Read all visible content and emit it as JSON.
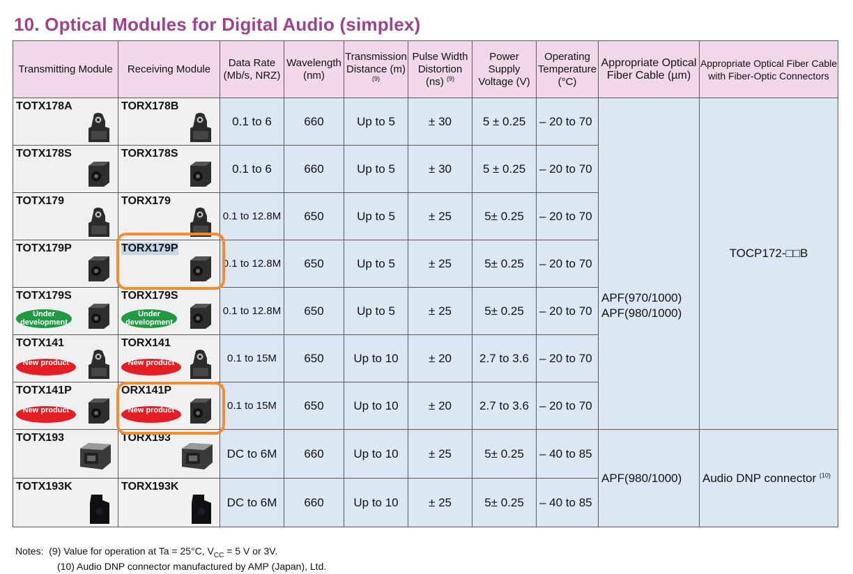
{
  "title": "10.  Optical Modules for Digital Audio (simplex)",
  "headers": {
    "tx": "Transmitting Module",
    "rx": "Receiving Module",
    "rate": "Data Rate (Mb/s, NRZ)",
    "wavelength": "Wavelength (nm)",
    "distance": "Transmission Distance (m)",
    "distance_note": "(9)",
    "pulse": "Pulse Width Distortion (ns)",
    "pulse_note": "(9)",
    "voltage": "Power Supply Voltage (V)",
    "temp": "Operating Temperature (°C)",
    "cable": "Appropriate Optical Fiber Cable (µm)",
    "connector": "Appropriate Optical Fiber Cable with Fiber-Optic Connectors"
  },
  "badges": {
    "under_development": "Under development",
    "new_product": "New product"
  },
  "rows": [
    {
      "tx": "TOTX178A",
      "rx": "TORX178B",
      "rate": "0.1 to 6",
      "wavelength": "660",
      "distance": "Up to 5",
      "pulse": "± 30",
      "voltage": "5 ± 0.25",
      "temp": "– 20 to 70",
      "pic": "tall",
      "badge": ""
    },
    {
      "tx": "TOTX178S",
      "rx": "TORX178S",
      "rate": "0.1 to 6",
      "wavelength": "660",
      "distance": "Up to 5",
      "pulse": "± 30",
      "voltage": "5 ± 0.25",
      "temp": "– 20 to 70",
      "pic": "box",
      "badge": ""
    },
    {
      "tx": "TOTX179",
      "rx": "TORX179",
      "rate": "0.1 to 12.8M",
      "wavelength": "650",
      "distance": "Up to  5",
      "pulse": "± 25",
      "voltage": "5± 0.25",
      "temp": "– 20 to 70",
      "pic": "tall",
      "badge": ""
    },
    {
      "tx": "TOTX179P",
      "rx": "TORX179P",
      "rate": "0.1 to 12.8M",
      "wavelength": "650",
      "distance": "Up to 5",
      "pulse": "± 25",
      "voltage": "5± 0.25",
      "temp": "– 20 to 70",
      "pic": "box",
      "badge": ""
    },
    {
      "tx": "TOTX179S",
      "rx": "TORX179S",
      "rate": "0.1 to 12.8M",
      "wavelength": "650",
      "distance": "Up to 5",
      "pulse": "± 25",
      "voltage": "5± 0.25",
      "temp": "– 20 to 70",
      "pic": "box",
      "badge": "dev"
    },
    {
      "tx": "TOTX141",
      "rx": "TORX141",
      "rate": "0.1 to 15M",
      "wavelength": "650",
      "distance": "Up to 10",
      "pulse": "± 20",
      "voltage": "2.7 to 3.6",
      "temp": "– 20 to 70",
      "pic": "tall",
      "badge": "new"
    },
    {
      "tx": "TOTX141P",
      "rx": "ORX141P",
      "rate": "0.1 to 15M",
      "wavelength": "650",
      "distance": "Up to 10",
      "pulse": "± 20",
      "voltage": "2.7 to 3.6",
      "temp": "– 20 to 70",
      "pic": "box",
      "badge": "new"
    },
    {
      "tx": "TOTX193",
      "rx": "TORX193",
      "rate": "DC to 6M",
      "wavelength": "660",
      "distance": "Up to 10",
      "pulse": "± 25",
      "voltage": "5± 0.25",
      "temp": "– 40 to 85",
      "pic": "wide",
      "badge": ""
    },
    {
      "tx": "TOTX193K",
      "rx": "TORX193K",
      "rate": "DC to 6M",
      "wavelength": "660",
      "distance": "Up to 10",
      "pulse": "± 25",
      "voltage": "5± 0.25",
      "temp": "– 40 to 85",
      "pic": "black",
      "badge": ""
    }
  ],
  "group1": {
    "cable_line1": "APF(970/1000)",
    "cable_line2": "APF(980/1000)",
    "connector": "TOCP172-□□B"
  },
  "group2": {
    "cable": "APF(980/1000)",
    "connector": "Audio DNP connector",
    "connector_note": "(10)"
  },
  "notes": {
    "label": "Notes:",
    "note9_pre": "(9) Value for operation at Ta = 25°C, V",
    "note9_sub": "CC",
    "note9_post": " = 5 V or 3V.",
    "note10": "(10) Audio DNP connector manufactured by AMP (Japan), Ltd."
  },
  "highlight_color": "#f08c32",
  "header_color": "#f0d8e8",
  "cell_color": "#dde6f3",
  "title_color": "#a0418f"
}
